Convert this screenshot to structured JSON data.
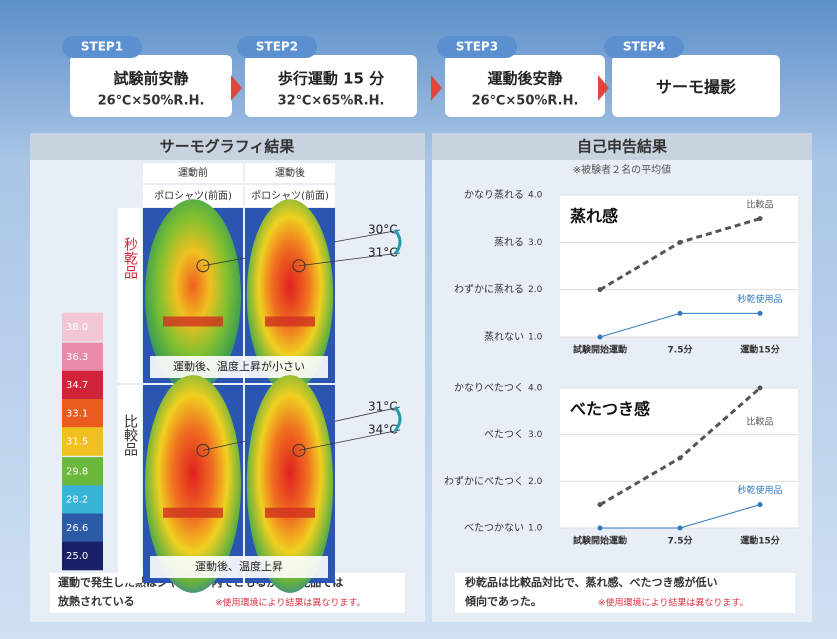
{
  "steps": [
    {
      "label": "STEP1",
      "title": "試験前安静",
      "condition": "26℃×50%R.H."
    },
    {
      "label": "STEP2",
      "title": "歩行運動 15 分",
      "condition": "32℃×65%R.H."
    },
    {
      "label": "STEP3",
      "title": "運動後安静",
      "condition": "26℃×50%R.H."
    },
    {
      "label": "STEP4",
      "title": "サーモ撮影"
    }
  ],
  "thermo": {
    "title": "サーモグラフィ結果",
    "columns": [
      "運動前",
      "運動後"
    ],
    "garments": [
      "ポロシャツ(前面)",
      "ポロシャツ(前面)"
    ],
    "rows": [
      {
        "label": "秒乾品",
        "temps": [
          "30°C",
          "31°C"
        ],
        "caption": "運動後、温度上昇が小さい"
      },
      {
        "label": "比較品",
        "temps": [
          "31°C",
          "34°C"
        ],
        "caption": "運動後、温度上昇"
      }
    ],
    "scale": [
      {
        "value": 38.0,
        "label": "38.0"
      },
      {
        "value": 36.3,
        "label": "36.3"
      },
      {
        "value": 34.7,
        "label": "34.7"
      },
      {
        "value": 33.1,
        "label": "33.1"
      },
      {
        "value": 31.5,
        "label": "31.5"
      },
      {
        "value": 29.8,
        "label": "29.8"
      },
      {
        "value": 28.2,
        "label": "28.2"
      },
      {
        "value": 26.6,
        "label": "26.6"
      },
      {
        "value": 25.0,
        "label": "25.0"
      }
    ],
    "footer": [
      "運動で発生した熱はジャケット内でこもるが、秒乾品では",
      "放熱されている"
    ],
    "note": "※使用環境により結果は異なります。"
  },
  "survey": {
    "title": "自己申告結果",
    "subtitle": "※被験者２名の平均値",
    "footer": [
      "秒乾品は比較品対比で、蒸れ感、べたつき感が低い",
      "傾向であった。"
    ],
    "note": "※使用環境により結果は異なります。"
  },
  "chart_data": [
    {
      "type": "line",
      "title": "蒸れ感",
      "categories": [
        "試験開始運動",
        "7.5分",
        "運動15分"
      ],
      "ylim": [
        1,
        4
      ],
      "yticks": [
        {
          "value": 1,
          "label": "1.0"
        },
        {
          "value": 2,
          "label": "2.0"
        },
        {
          "value": 3,
          "label": "3.0"
        },
        {
          "value": 4,
          "label": "4.0"
        }
      ],
      "ytick_names": [
        "蒸れない",
        "わずかに蒸れる",
        "蒸れる",
        "かなり蒸れる"
      ],
      "grid": true,
      "series": [
        {
          "name": "比較品",
          "color": "#555555",
          "dashed": true,
          "values": [
            2,
            3,
            3.5
          ]
        },
        {
          "name": "秒乾使用品",
          "color": "#2f78c0",
          "dashed": false,
          "values": [
            1,
            1.5,
            1.5
          ]
        }
      ]
    },
    {
      "type": "line",
      "title": "べたつき感",
      "categories": [
        "試験開始運動",
        "7.5分",
        "運動15分"
      ],
      "ylim": [
        1,
        4
      ],
      "yticks": [
        {
          "value": 1,
          "label": "1.0"
        },
        {
          "value": 2,
          "label": "2.0"
        },
        {
          "value": 3,
          "label": "3.0"
        },
        {
          "value": 4,
          "label": "4.0"
        }
      ],
      "ytick_names": [
        "べたつかない",
        "わずかにべたつく",
        "べたつく",
        "かなりべたつく"
      ],
      "grid": true,
      "series": [
        {
          "name": "比較品",
          "color": "#555555",
          "dashed": true,
          "values": [
            1.5,
            2.5,
            4
          ]
        },
        {
          "name": "秒乾使用品",
          "color": "#2f78c0",
          "dashed": false,
          "values": [
            1,
            1,
            1.5
          ]
        }
      ]
    }
  ]
}
